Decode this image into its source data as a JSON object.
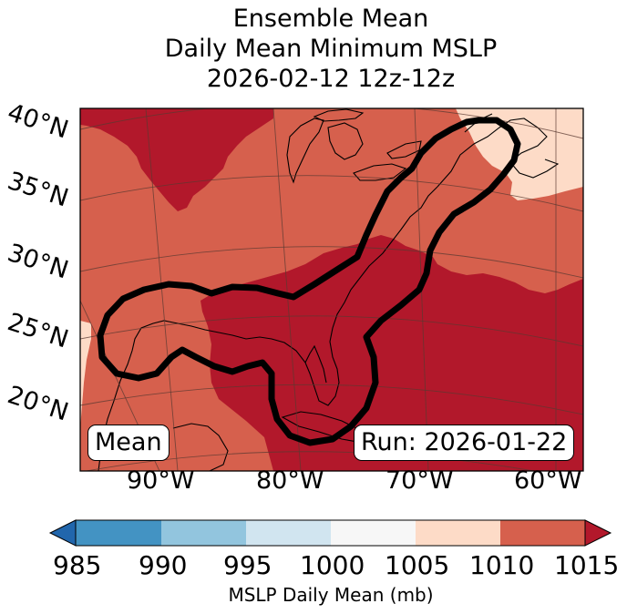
{
  "title": {
    "line1": "Ensemble Mean",
    "line2": "Daily Mean Minimum MSLP",
    "line3": "2026-02-12 12z-12z"
  },
  "map": {
    "lat_labels": [
      "40°N",
      "35°N",
      "30°N",
      "25°N",
      "20°N"
    ],
    "lon_labels": [
      "90°W",
      "80°W",
      "70°W",
      "60°W"
    ],
    "mean_label": "Mean",
    "run_label": "Run: 2026-01-22"
  },
  "colorbar": {
    "ticks": [
      "985",
      "990",
      "995",
      "1000",
      "1005",
      "1010",
      "1015"
    ],
    "label": "MSLP Daily Mean (mb)",
    "colors": {
      "below_985": "#2166ac",
      "985_990": "#4393c3",
      "990_995": "#92c5de",
      "995_1000": "#d1e5f0",
      "1000_1005": "#f7f7f7",
      "1005_1010": "#fddbc7",
      "1010_1015": "#d6604d",
      "above_1015": "#b2182b"
    }
  },
  "legend": {
    "contour_color": "#000000",
    "coastline_color": "#000000",
    "gridline_color": "#5a3a32"
  }
}
